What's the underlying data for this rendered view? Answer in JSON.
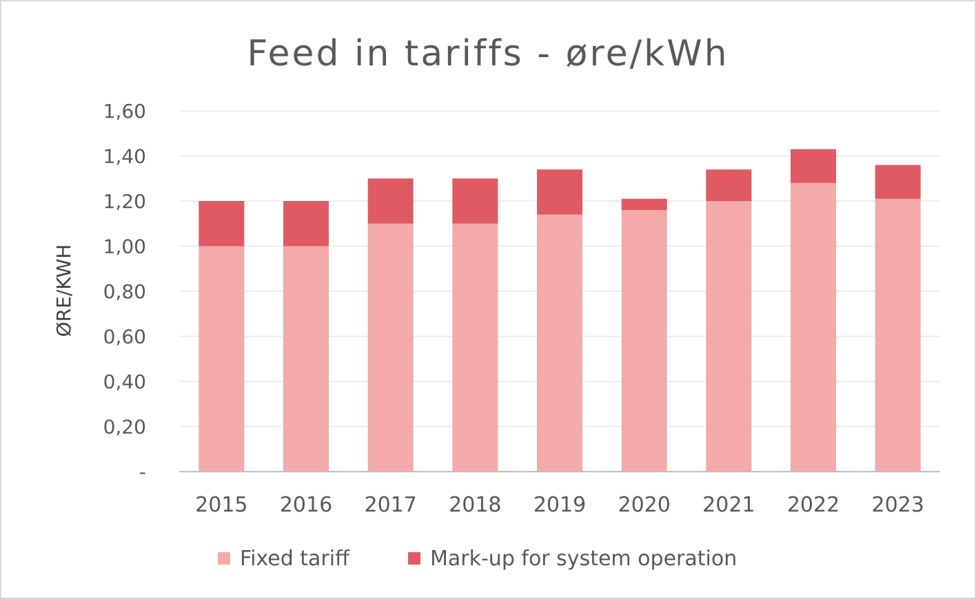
{
  "chart_data": {
    "type": "bar",
    "stacked": true,
    "title": "Feed in tariffs - øre/kWh",
    "xlabel": "",
    "ylabel": "ØRE/KWH",
    "ylim": [
      0,
      1.6
    ],
    "yticks": [
      "-",
      "0,20",
      "0,40",
      "0,60",
      "0,80",
      "1,00",
      "1,20",
      "1,40",
      "1,60"
    ],
    "grid": true,
    "legend_position": "bottom",
    "categories": [
      "2015",
      "2016",
      "2017",
      "2018",
      "2019",
      "2020",
      "2021",
      "2022",
      "2023"
    ],
    "series": [
      {
        "name": "Fixed tariff",
        "color": "#f4a9ab",
        "values": [
          1.0,
          1.0,
          1.1,
          1.1,
          1.14,
          1.16,
          1.2,
          1.28,
          1.21
        ]
      },
      {
        "name": "Mark-up for system operation",
        "color": "#df5a62",
        "values": [
          0.2,
          0.2,
          0.2,
          0.2,
          0.2,
          0.05,
          0.14,
          0.15,
          0.15
        ]
      }
    ]
  }
}
